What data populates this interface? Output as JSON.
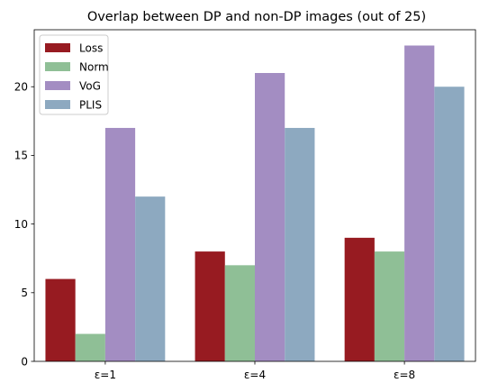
{
  "chart_data": {
    "type": "bar",
    "title": "Overlap between DP and non-DP images (out of 25)",
    "xlabel": "",
    "ylabel": "",
    "categories": [
      "ε=1",
      "ε=4",
      "ε=8"
    ],
    "series": [
      {
        "name": "Loss",
        "color": "#971b21",
        "values": [
          6,
          8,
          9
        ]
      },
      {
        "name": "Norm",
        "color": "#8fbf96",
        "values": [
          2,
          7,
          8
        ]
      },
      {
        "name": "VoG",
        "color": "#a38dc2",
        "values": [
          17,
          21,
          23
        ]
      },
      {
        "name": "PLIS",
        "color": "#8da9c0",
        "values": [
          12,
          17,
          20
        ]
      }
    ],
    "ylim": [
      0,
      24.15
    ],
    "yticks": [
      0,
      5,
      10,
      15,
      20
    ],
    "grid": false,
    "legend_position": "top-left"
  }
}
